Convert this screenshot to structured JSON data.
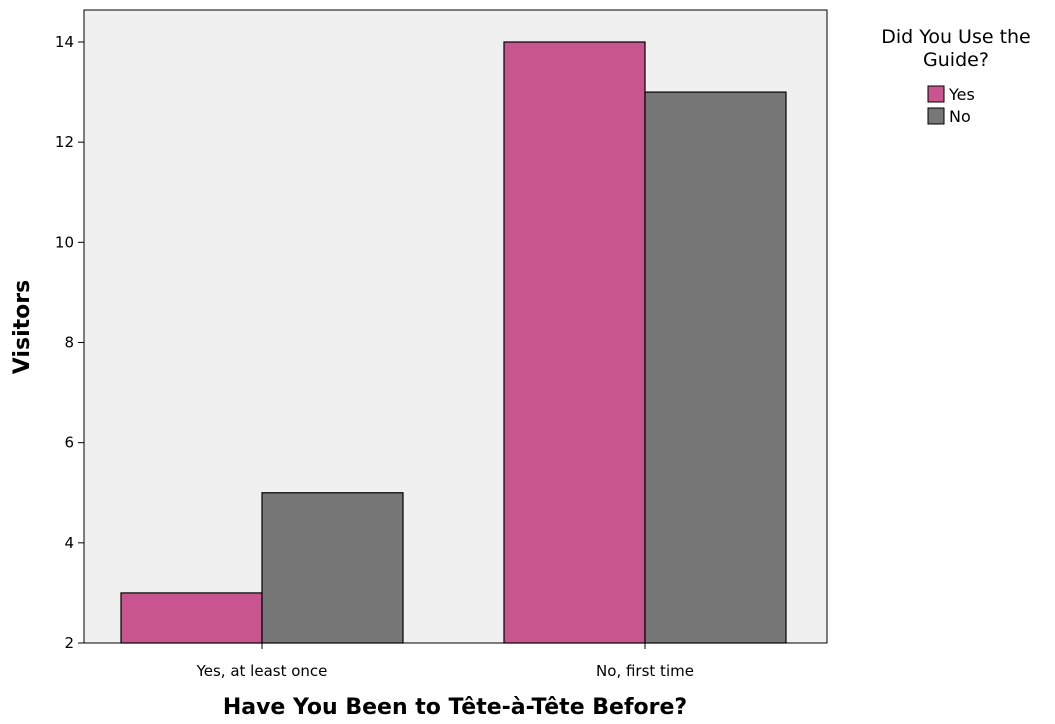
{
  "chart_data": {
    "type": "bar",
    "categories": [
      "Yes, at least once",
      "No, first time"
    ],
    "series": [
      {
        "name": "Yes",
        "values": [
          3,
          14
        ],
        "color": "#c9558e"
      },
      {
        "name": "No",
        "values": [
          5,
          13
        ],
        "color": "#777777"
      }
    ],
    "xlabel": "Have You Been to Tête-à-Tête Before?",
    "ylabel": "Visitors",
    "ylim": [
      2,
      14.6
    ],
    "yticks": [
      2,
      4,
      6,
      8,
      10,
      12,
      14
    ],
    "grid": false,
    "plot_background": "#f0f0f0",
    "legend": {
      "title_lines": [
        "Did You Use the",
        "Guide?"
      ],
      "position": "top-right",
      "placement": "outside"
    }
  }
}
